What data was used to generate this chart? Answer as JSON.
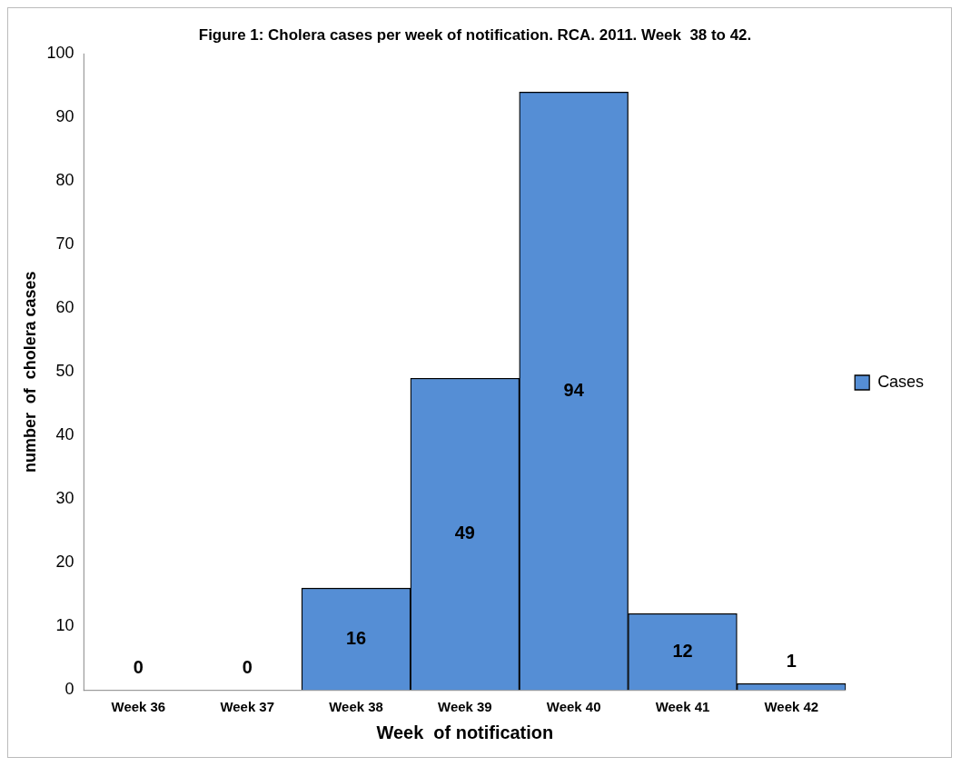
{
  "chart_data": {
    "type": "bar",
    "title": "Figure 1: Cholera cases per week of notification. RCA. 2011. Week  38 to 42.",
    "xlabel": "Week  of notification",
    "ylabel": "number  of  cholera cases",
    "categories": [
      "Week 36",
      "Week 37",
      "Week 38",
      "Week 39",
      "Week 40",
      "Week 41",
      "Week 42"
    ],
    "series": [
      {
        "name": "Cases",
        "color": "#558ed5",
        "values": [
          0,
          0,
          16,
          49,
          94,
          12,
          1
        ]
      }
    ],
    "ylim": [
      0,
      100
    ],
    "yticks": [
      0,
      10,
      20,
      30,
      40,
      50,
      60,
      70,
      80,
      90,
      100
    ],
    "grid": false,
    "legend": "right",
    "data_labels": true
  }
}
